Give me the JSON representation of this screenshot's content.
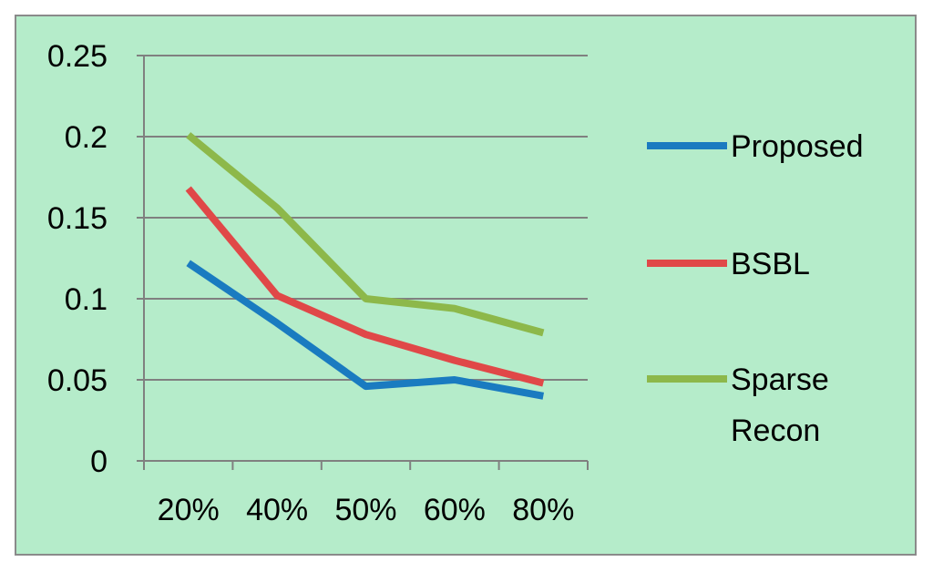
{
  "chart_data": {
    "type": "line",
    "title": "",
    "xlabel": "",
    "ylabel": "",
    "background": "#b5ecca",
    "frame_color": "#8a8a8a",
    "grid": true,
    "grid_color": "#808080",
    "legend_position": "right",
    "categories": [
      "20%",
      "40%",
      "50%",
      "60%",
      "80%"
    ],
    "ylim": [
      0,
      0.25
    ],
    "yticks": [
      0,
      0.05,
      0.1,
      0.15,
      0.2,
      0.25
    ],
    "ytick_labels": [
      "0",
      "0.05",
      "0.1",
      "0.15",
      "0.2",
      "0.25"
    ],
    "series": [
      {
        "name": "Proposed",
        "legend_lines": [
          "Proposed"
        ],
        "color": "#1a7bc0",
        "values": [
          0.122,
          0.085,
          0.046,
          0.05,
          0.04
        ]
      },
      {
        "name": "BSBL",
        "legend_lines": [
          "BSBL"
        ],
        "color": "#e04848",
        "values": [
          0.168,
          0.102,
          0.078,
          0.062,
          0.048
        ]
      },
      {
        "name": "Sparse Recon",
        "legend_lines": [
          "Sparse",
          "Recon"
        ],
        "color": "#8db84a",
        "values": [
          0.201,
          0.156,
          0.1,
          0.094,
          0.079
        ]
      }
    ]
  }
}
